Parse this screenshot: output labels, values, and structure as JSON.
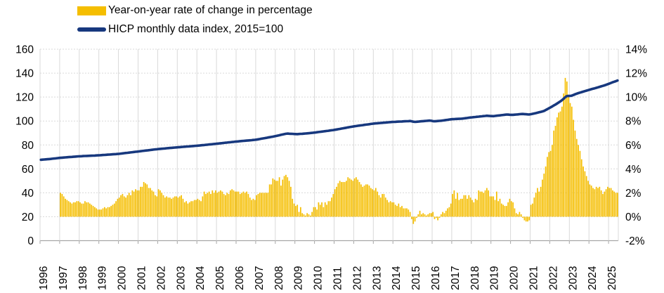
{
  "legend": {
    "bar_label": "Year-on-year rate of change in percentage",
    "line_label": "HICP monthly data index, 2015=100"
  },
  "colors": {
    "bar": "#F5BE00",
    "line": "#17387E",
    "grid": "#D9D9D9",
    "axis": "#A6A6A6",
    "text": "#000000"
  },
  "chart_data": {
    "type": "combo-bar-line",
    "title": "",
    "x_axis": {
      "labels": [
        "1996",
        "1997",
        "1998",
        "1999",
        "2000",
        "2001",
        "2002",
        "2003",
        "2004",
        "2005",
        "2006",
        "2007",
        "2008",
        "2009",
        "2010",
        "2011",
        "2012",
        "2013",
        "2014",
        "2015",
        "2016",
        "2017",
        "2018",
        "2019",
        "2020",
        "2021",
        "2022",
        "2023",
        "2024",
        "2025"
      ],
      "range_decimal_years": [
        1996.0,
        2025.5
      ],
      "gridlines": "vertical-solid-light"
    },
    "y_axis_left": {
      "labels": [
        "160",
        "140",
        "120",
        "100",
        "80",
        "60",
        "40",
        "20",
        "0"
      ],
      "values": [
        160,
        140,
        120,
        100,
        80,
        60,
        40,
        20,
        0
      ],
      "range": [
        0,
        160
      ],
      "applies_to": "HICP index line",
      "gridlines": "horizontal-dashed-light"
    },
    "y_axis_right": {
      "labels": [
        "14%",
        "12%",
        "10%",
        "8%",
        "6%",
        "4%",
        "2%",
        "0%",
        "-2%"
      ],
      "values": [
        14,
        12,
        10,
        8,
        6,
        4,
        2,
        0,
        -2
      ],
      "range": [
        -2,
        14
      ],
      "applies_to": "year-on-year rate bars"
    },
    "series": [
      {
        "name": "Year-on-year rate of change in percentage",
        "type": "bar",
        "axis": "right",
        "unit": "%",
        "start": "1997-01",
        "end": "2025-06",
        "yoy_by_year": {
          "1997": [
            2.0,
            1.9,
            1.7,
            1.5,
            1.4,
            1.3,
            1.2,
            1.1,
            1.2,
            1.2,
            1.3,
            1.3
          ],
          "1998": [
            1.2,
            1.1,
            1.1,
            1.3,
            1.2,
            1.2,
            1.1,
            1.0,
            0.9,
            0.8,
            0.7,
            0.6
          ],
          "1999": [
            0.6,
            0.6,
            0.7,
            0.8,
            0.7,
            0.8,
            0.8,
            0.9,
            1.0,
            1.1,
            1.3,
            1.5
          ],
          "2000": [
            1.6,
            1.8,
            1.9,
            1.7,
            1.6,
            1.8,
            2.0,
            1.8,
            2.2,
            2.1,
            2.3,
            2.2
          ],
          "2001": [
            2.2,
            2.5,
            2.5,
            2.9,
            2.8,
            2.7,
            2.4,
            2.4,
            2.2,
            2.1,
            1.8,
            1.7
          ],
          "2002": [
            2.3,
            2.2,
            2.0,
            1.8,
            1.6,
            1.7,
            1.6,
            1.6,
            1.5,
            1.6,
            1.7,
            1.7
          ],
          "2003": [
            1.6,
            1.7,
            1.8,
            1.5,
            1.2,
            1.3,
            1.1,
            1.2,
            1.3,
            1.3,
            1.4,
            1.4
          ],
          "2004": [
            1.5,
            1.4,
            1.3,
            1.7,
            2.1,
            1.9,
            2.0,
            2.1,
            1.9,
            2.2,
            2.0,
            2.2
          ],
          "2005": [
            2.0,
            2.1,
            2.2,
            2.1,
            1.9,
            1.8,
            2.0,
            1.9,
            2.2,
            2.3,
            2.2,
            2.1
          ],
          "2006": [
            2.1,
            2.1,
            1.9,
            2.0,
            2.1,
            2.0,
            2.1,
            1.9,
            1.6,
            1.4,
            1.5,
            1.4
          ],
          "2007": [
            1.8,
            1.9,
            2.0,
            2.0,
            2.0,
            2.0,
            2.0,
            2.0,
            2.7,
            2.7,
            3.2,
            3.1
          ],
          "2008": [
            3.0,
            3.0,
            3.3,
            2.6,
            3.1,
            3.4,
            3.5,
            3.3,
            3.0,
            2.5,
            1.5,
            1.1
          ],
          "2009": [
            0.9,
            1.0,
            0.4,
            0.8,
            0.3,
            0.2,
            0.1,
            0.3,
            0.2,
            0.1,
            0.4,
            0.8
          ],
          "2010": [
            0.8,
            0.6,
            1.2,
            1.0,
            1.2,
            0.8,
            1.2,
            1.0,
            1.3,
            1.3,
            1.6,
            1.9
          ],
          "2011": [
            2.3,
            2.5,
            2.8,
            3.0,
            2.9,
            2.9,
            2.9,
            3.0,
            3.3,
            3.2,
            3.1,
            3.0
          ],
          "2012": [
            3.2,
            3.3,
            3.1,
            2.9,
            2.7,
            2.5,
            2.6,
            2.7,
            2.7,
            2.6,
            2.4,
            2.3
          ],
          "2013": [
            2.2,
            2.4,
            2.1,
            1.8,
            1.6,
            1.9,
            1.9,
            1.6,
            1.4,
            1.2,
            1.3,
            1.2
          ],
          "2014": [
            1.2,
            1.0,
            0.9,
            1.1,
            0.8,
            0.9,
            0.7,
            0.7,
            0.7,
            0.6,
            0.4,
            -0.2
          ],
          "2015": [
            -0.6,
            -0.4,
            -0.1,
            0.2,
            0.5,
            0.2,
            0.3,
            0.2,
            0.1,
            0.2,
            0.3,
            0.3
          ],
          "2016": [
            0.4,
            -0.2,
            -0.1,
            -0.3,
            -0.1,
            0.2,
            0.4,
            0.3,
            0.5,
            0.7,
            0.8,
            1.1
          ],
          "2017": [
            1.9,
            2.2,
            1.5,
            2.0,
            1.4,
            1.5,
            1.5,
            1.8,
            1.8,
            1.5,
            1.8,
            1.6
          ],
          "2018": [
            1.4,
            1.2,
            1.5,
            1.4,
            2.2,
            2.1,
            2.1,
            2.0,
            2.2,
            2.4,
            2.2,
            1.7
          ],
          "2019": [
            1.7,
            1.7,
            1.4,
            2.1,
            1.3,
            1.5,
            1.1,
            1.0,
            0.9,
            0.9,
            1.2,
            1.5
          ],
          "2020": [
            1.3,
            1.2,
            0.7,
            0.3,
            0.2,
            0.4,
            0.2,
            -0.1,
            -0.3,
            -0.4,
            -0.4,
            -0.3
          ],
          "2021": [
            1.0,
            1.1,
            1.6,
            2.0,
            2.4,
            2.1,
            2.5,
            3.1,
            3.6,
            4.2,
            5.0,
            5.4
          ],
          "2022": [
            5.5,
            6.0,
            7.2,
            7.6,
            8.3,
            8.7,
            8.8,
            9.2,
            10.3,
            11.6,
            11.3,
            10.2
          ],
          "2023": [
            9.5,
            9.2,
            8.1,
            7.2,
            6.5,
            6.0,
            5.5,
            4.8,
            4.2,
            3.8,
            3.4,
            3.0
          ],
          "2024": [
            2.7,
            2.6,
            2.4,
            2.3,
            2.5,
            2.4,
            2.5,
            2.2,
            1.9,
            2.1,
            2.3,
            2.5
          ],
          "2025": [
            2.4,
            2.4,
            2.2,
            2.1,
            2.0,
            2.0
          ]
        }
      },
      {
        "name": "HICP monthly data index, 2015=100",
        "type": "line",
        "axis": "left",
        "start": "1996-01",
        "end": "2025-06",
        "anchors": [
          [
            1996.0,
            67.5
          ],
          [
            1996.5,
            68.2
          ],
          [
            1997.0,
            69.2
          ],
          [
            1998.0,
            70.5
          ],
          [
            1999.0,
            71.3
          ],
          [
            2000.0,
            72.5
          ],
          [
            2001.0,
            74.5
          ],
          [
            2002.0,
            76.5
          ],
          [
            2003.0,
            78.0
          ],
          [
            2004.0,
            79.3
          ],
          [
            2005.0,
            81.0
          ],
          [
            2006.0,
            82.8
          ],
          [
            2007.0,
            84.3
          ],
          [
            2007.9,
            87.0
          ],
          [
            2008.6,
            89.5
          ],
          [
            2009.1,
            89.0
          ],
          [
            2009.6,
            89.6
          ],
          [
            2010.0,
            90.3
          ],
          [
            2011.0,
            92.5
          ],
          [
            2012.0,
            95.5
          ],
          [
            2013.0,
            97.8
          ],
          [
            2014.0,
            99.2
          ],
          [
            2014.9,
            100.0
          ],
          [
            2015.1,
            99.2
          ],
          [
            2015.9,
            100.4
          ],
          [
            2016.1,
            99.7
          ],
          [
            2016.5,
            100.3
          ],
          [
            2017.0,
            101.5
          ],
          [
            2017.5,
            101.9
          ],
          [
            2018.0,
            103.0
          ],
          [
            2018.8,
            104.4
          ],
          [
            2019.1,
            104.0
          ],
          [
            2019.8,
            105.4
          ],
          [
            2020.1,
            105.1
          ],
          [
            2020.6,
            105.9
          ],
          [
            2020.95,
            105.4
          ],
          [
            2021.3,
            106.6
          ],
          [
            2021.7,
            108.3
          ],
          [
            2022.0,
            111.0
          ],
          [
            2022.3,
            113.8
          ],
          [
            2022.6,
            117.0
          ],
          [
            2022.85,
            120.8
          ],
          [
            2023.1,
            121.0
          ],
          [
            2023.4,
            123.0
          ],
          [
            2023.7,
            124.5
          ],
          [
            2024.0,
            126.0
          ],
          [
            2024.4,
            127.8
          ],
          [
            2024.8,
            129.8
          ],
          [
            2025.0,
            131.0
          ],
          [
            2025.2,
            132.3
          ],
          [
            2025.46,
            133.8
          ]
        ]
      }
    ]
  }
}
